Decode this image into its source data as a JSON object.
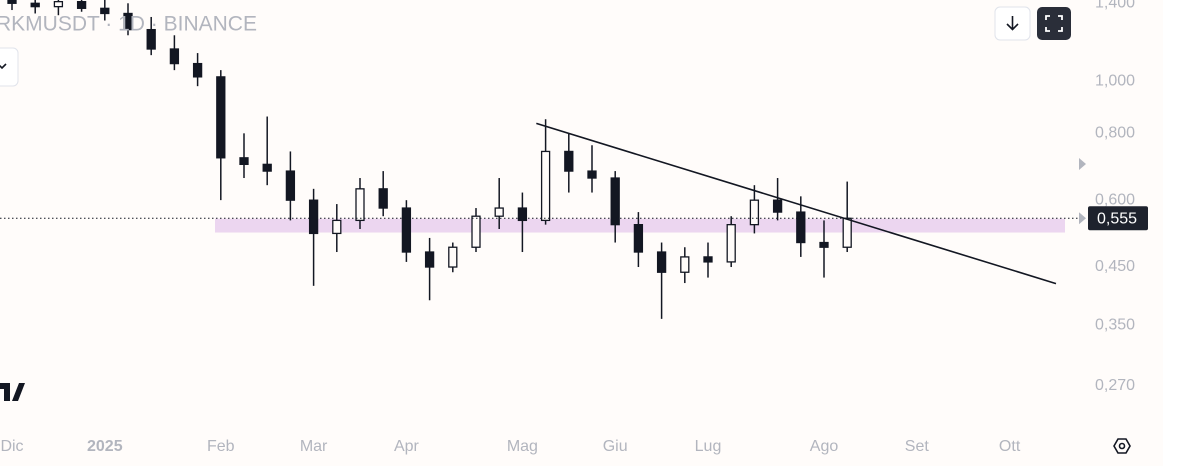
{
  "chart_data": {
    "type": "candlestick",
    "title": "RKMUSDT · 1D · BINANCE",
    "log_scale": true,
    "grid": false,
    "color": "#131722",
    "categories": [
      "Dic",
      null,
      null,
      null,
      "2025",
      null,
      null,
      null,
      null,
      "Feb",
      null,
      null,
      null,
      "Mar",
      null,
      null,
      null,
      "Apr",
      null,
      null,
      null,
      null,
      "Mag",
      null,
      null,
      null,
      "Giu",
      null,
      null,
      null,
      "Lug",
      null,
      null,
      null,
      null,
      "Ago",
      null,
      null,
      null,
      "Set",
      null,
      null,
      null,
      "Ott",
      null,
      null,
      null
    ],
    "open": [
      1.42,
      1.4,
      1.38,
      1.41,
      1.37,
      1.34,
      1.25,
      1.15,
      1.08,
      1.02,
      0.72,
      0.7,
      0.68,
      0.6,
      0.52,
      0.55,
      0.63,
      0.58,
      0.48,
      0.45,
      0.49,
      0.56,
      0.58,
      0.55,
      0.74,
      0.68,
      0.66,
      0.54,
      0.48,
      0.44,
      0.47,
      0.46,
      0.54,
      0.6,
      0.57,
      0.5,
      0.49,
      null,
      null,
      null,
      null,
      null,
      null,
      null,
      null,
      null,
      null
    ],
    "high": [
      1.48,
      1.47,
      1.45,
      1.46,
      1.43,
      1.4,
      1.32,
      1.22,
      1.13,
      1.05,
      0.8,
      0.86,
      0.74,
      0.63,
      0.59,
      0.66,
      0.68,
      0.6,
      0.51,
      0.5,
      0.58,
      0.66,
      0.62,
      0.85,
      0.8,
      0.76,
      0.68,
      0.57,
      0.5,
      0.49,
      0.5,
      0.56,
      0.64,
      0.66,
      0.61,
      0.55,
      0.65,
      null,
      null,
      null,
      null,
      null,
      null,
      null,
      null,
      null,
      null
    ],
    "low": [
      1.36,
      1.34,
      1.33,
      1.35,
      1.3,
      1.22,
      1.12,
      1.05,
      0.98,
      0.6,
      0.66,
      0.64,
      0.55,
      0.415,
      0.48,
      0.53,
      0.56,
      0.46,
      0.39,
      0.44,
      0.48,
      0.53,
      0.48,
      0.54,
      0.62,
      0.62,
      0.5,
      0.45,
      0.36,
      0.42,
      0.43,
      0.45,
      0.52,
      0.55,
      0.47,
      0.43,
      0.48,
      null,
      null,
      null,
      null,
      null,
      null,
      null,
      null,
      null,
      null
    ],
    "close": [
      1.4,
      1.38,
      1.41,
      1.37,
      1.34,
      1.25,
      1.15,
      1.08,
      1.02,
      0.72,
      0.7,
      0.68,
      0.6,
      0.52,
      0.55,
      0.63,
      0.58,
      0.48,
      0.45,
      0.49,
      0.56,
      0.58,
      0.55,
      0.74,
      0.68,
      0.66,
      0.54,
      0.48,
      0.44,
      0.47,
      0.46,
      0.54,
      0.6,
      0.57,
      0.5,
      0.49,
      0.555,
      null,
      null,
      null,
      null,
      null,
      null,
      null,
      null,
      null,
      null
    ],
    "ylim": [
      0.228,
      1.42
    ],
    "yticks": [
      {
        "value": 1.4,
        "label": "1,400"
      },
      {
        "value": 1.0,
        "label": "1,000"
      },
      {
        "value": 0.8,
        "label": "0,800"
      },
      {
        "value": 0.6,
        "label": "0,600"
      },
      {
        "value": 0.45,
        "label": "0,450"
      },
      {
        "value": 0.35,
        "label": "0,350"
      },
      {
        "value": 0.27,
        "label": "0,270"
      }
    ],
    "last_price": {
      "value": 0.555,
      "label": "0,555",
      "color": "#1e222d"
    },
    "zone": {
      "values": [
        0.522,
        0.554
      ],
      "color": "#ecd6f0"
    },
    "trendline": {
      "x": [
        22.6,
        45
      ],
      "values": [
        0.835,
        0.419
      ],
      "color": "#131722"
    }
  }
}
